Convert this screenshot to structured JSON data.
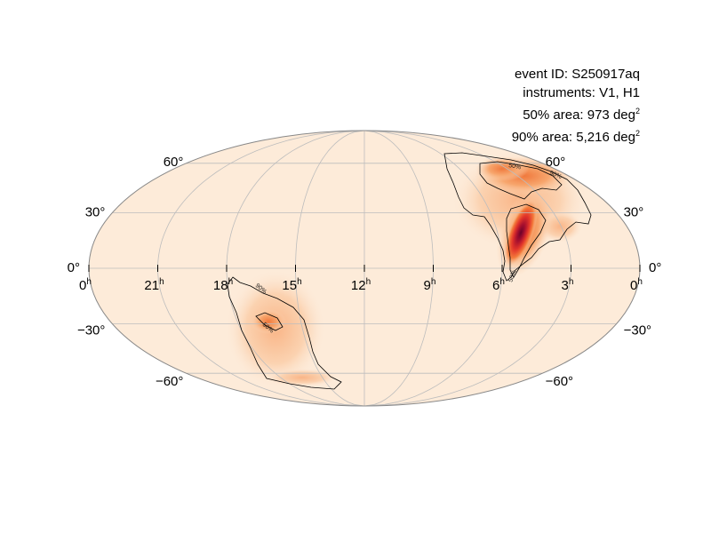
{
  "info": {
    "event_id": "event ID: S250917aq",
    "instruments": "instruments: V1, H1",
    "area50": "50% area: 973 deg",
    "area90": "90% area: 5,216 deg",
    "area_unit_sup": "2"
  },
  "axes": {
    "ra_labels": [
      {
        "text": "0",
        "sup": "h"
      },
      {
        "text": "21",
        "sup": "h"
      },
      {
        "text": "18",
        "sup": "h"
      },
      {
        "text": "15",
        "sup": "h"
      },
      {
        "text": "12",
        "sup": "h"
      },
      {
        "text": "9",
        "sup": "h"
      },
      {
        "text": "6",
        "sup": "h"
      },
      {
        "text": "3",
        "sup": "h"
      },
      {
        "text": "0",
        "sup": "h"
      }
    ],
    "dec_labels_left": [
      "60°",
      "30°",
      "0°",
      "−30°",
      "−60°"
    ],
    "dec_labels_right": [
      "60°",
      "30°",
      "0°",
      "−30°",
      "−60°"
    ],
    "dec_values": [
      60,
      30,
      0,
      -30,
      -60
    ]
  },
  "contours": {
    "label_50": "50%",
    "label_90": "90%"
  },
  "colors": {
    "background": "#fdebd9",
    "ellipse_stroke": "#888888",
    "grid": "#bdbdbd",
    "contour": "#000000",
    "heat_low": "#f8c49a",
    "heat_mid": "#e8502a",
    "heat_high": "#8a0a2e"
  }
}
